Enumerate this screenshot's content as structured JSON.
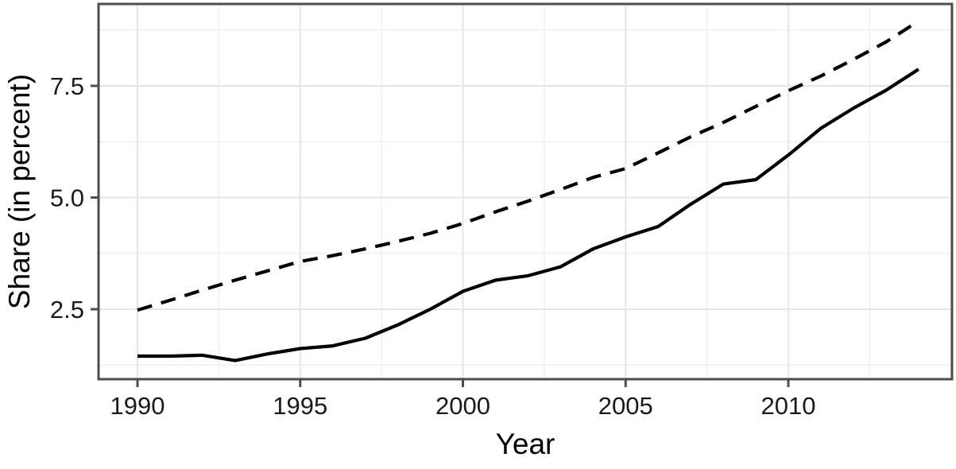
{
  "chart_data": {
    "type": "line",
    "title": "",
    "xlabel": "Year",
    "ylabel": "Share (in percent)",
    "x": [
      1990,
      1991,
      1992,
      1993,
      1994,
      1995,
      1996,
      1997,
      1998,
      1999,
      2000,
      2001,
      2002,
      2003,
      2004,
      2005,
      2006,
      2007,
      2008,
      2009,
      2010,
      2011,
      2012,
      2013,
      2014
    ],
    "series": [
      {
        "name": "upper-dashed",
        "style": "dashed",
        "color": "#000000",
        "values": [
          2.48,
          2.7,
          2.93,
          3.15,
          3.36,
          3.57,
          3.7,
          3.85,
          4.02,
          4.2,
          4.42,
          4.68,
          4.92,
          5.18,
          5.45,
          5.65,
          6.0,
          6.36,
          6.68,
          7.04,
          7.39,
          7.72,
          8.09,
          8.48,
          8.95
        ]
      },
      {
        "name": "lower-solid",
        "style": "solid",
        "color": "#000000",
        "values": [
          1.45,
          1.45,
          1.47,
          1.35,
          1.5,
          1.62,
          1.68,
          1.85,
          2.15,
          2.5,
          2.9,
          3.15,
          3.25,
          3.45,
          3.85,
          4.12,
          4.35,
          4.85,
          5.3,
          5.4,
          5.95,
          6.55,
          7.0,
          7.4,
          7.87
        ]
      }
    ],
    "x_ticks": [
      1990,
      1995,
      2000,
      2005,
      2010
    ],
    "x_tick_labels": [
      "1990",
      "1995",
      "2000",
      "2005",
      "2010"
    ],
    "y_ticks": [
      2.5,
      5.0,
      7.5
    ],
    "y_tick_labels": [
      "2.5",
      "5.0",
      "7.5"
    ],
    "xlim": [
      1988.8,
      2015.1
    ],
    "ylim": [
      0.93,
      9.33
    ],
    "grid": {
      "x_major": [
        1990,
        1995,
        2000,
        2005,
        2010,
        2015
      ],
      "x_minor": [
        1992.5,
        1997.5,
        2002.5,
        2007.5,
        2012.5
      ],
      "y_major": [
        2.5,
        5.0,
        7.5
      ],
      "y_minor": [
        1.25,
        3.75,
        6.25,
        8.75
      ]
    },
    "legend": "none",
    "styles": {
      "line_color": "#000000",
      "panel_border": "#4d4d4d",
      "grid_major": "#e6e6e6",
      "grid_minor": "#f0f0f0",
      "tick_color": "#4d4d4d",
      "tick_label_color": "#1a1a1a",
      "axis_title_color": "#000000",
      "background": "#ffffff"
    }
  }
}
